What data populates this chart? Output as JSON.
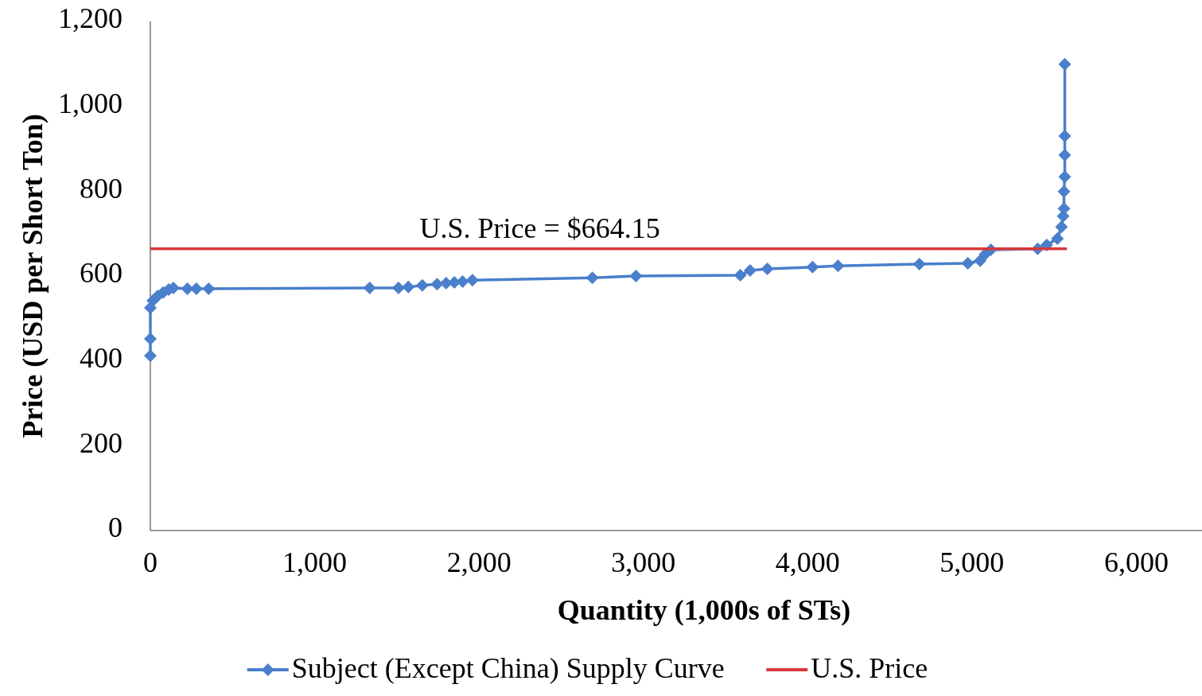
{
  "chart_data": {
    "type": "line",
    "xlabel": "Quantity (1,000s of STs)",
    "ylabel": "Price (USD per Short Ton)",
    "xlim": [
      0,
      6400
    ],
    "xticks": [
      {
        "value": 0,
        "label": "0"
      },
      {
        "value": 1000,
        "label": "1,000"
      },
      {
        "value": 2000,
        "label": "2,000"
      },
      {
        "value": 3000,
        "label": "3,000"
      },
      {
        "value": 4000,
        "label": "4,000"
      },
      {
        "value": 5000,
        "label": "5,000"
      },
      {
        "value": 6000,
        "label": "6,000"
      }
    ],
    "ylim": [
      0,
      1200
    ],
    "yticks": [
      {
        "value": 0,
        "label": "0"
      },
      {
        "value": 200,
        "label": "200"
      },
      {
        "value": 400,
        "label": "400"
      },
      {
        "value": 600,
        "label": "600"
      },
      {
        "value": 800,
        "label": "800"
      },
      {
        "value": 1000,
        "label": "1,000"
      },
      {
        "value": 1200,
        "label": "1,200"
      }
    ],
    "grid": false,
    "legend": "bottom",
    "annotations": [
      {
        "text": "U.S. Price = $664.15",
        "x": 3000,
        "y": 664.15
      }
    ],
    "series": [
      {
        "name": "Subject (Except China) Supply Curve",
        "color": "#4a7fcb",
        "marker": "diamond",
        "x": [
          0,
          0,
          0,
          15,
          45,
          78,
          112,
          140,
          225,
          280,
          355,
          1335,
          1510,
          1570,
          1655,
          1745,
          1800,
          1850,
          1900,
          1960,
          2690,
          2955,
          3590,
          3650,
          3755,
          4030,
          4185,
          4680,
          4975,
          5050,
          5080,
          5115,
          5400,
          5455,
          5520,
          5545,
          5555,
          5560,
          5560,
          5565,
          5565,
          5565,
          5565
        ],
        "values": [
          412,
          452,
          525,
          542,
          553,
          561,
          568,
          572,
          570,
          570,
          570,
          572,
          572,
          574,
          578,
          581,
          583,
          585,
          587,
          590,
          596,
          600,
          602,
          613,
          617,
          621,
          624,
          628,
          630,
          636,
          651,
          662,
          664,
          673,
          688,
          716,
          741,
          759,
          799,
          834,
          885,
          930,
          1099
        ]
      },
      {
        "name": "U.S. Price",
        "type": "line",
        "color": "#d9383a",
        "marker": "none",
        "x": [
          0,
          5578
        ],
        "values": [
          664.15,
          664.15
        ]
      }
    ]
  }
}
